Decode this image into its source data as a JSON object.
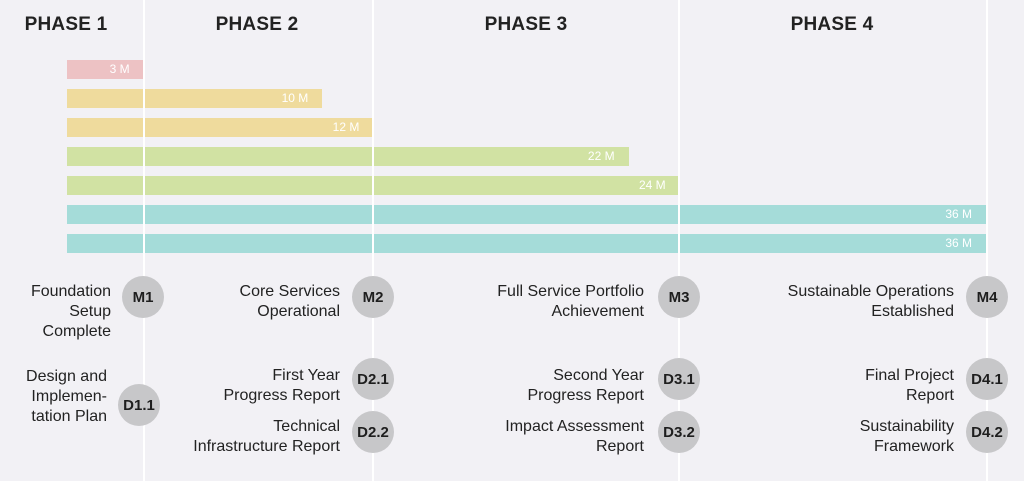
{
  "phases": [
    "PHASE 1",
    "PHASE 2",
    "PHASE 3",
    "PHASE 4"
  ],
  "colors": {
    "background": "#f2f1f5",
    "divider": "#ffffff",
    "bar_pink": "#edc2c4",
    "bar_yellow": "#efdb9d",
    "bar_green": "#d1e2a3",
    "bar_teal": "#a5dcd9",
    "badge": "#c7c7c9"
  },
  "timeline": {
    "total_months": 36,
    "bars": [
      {
        "label": "3 M",
        "months": 3,
        "color": "#edc2c4"
      },
      {
        "label": "10 M",
        "months": 10,
        "color": "#efdb9d"
      },
      {
        "label": "12 M",
        "months": 12,
        "color": "#efdb9d"
      },
      {
        "label": "22 M",
        "months": 22,
        "color": "#d1e2a3"
      },
      {
        "label": "24 M",
        "months": 24,
        "color": "#d1e2a3"
      },
      {
        "label": "36 M",
        "months": 36,
        "color": "#a5dcd9"
      },
      {
        "label": "36 M",
        "months": 36,
        "color": "#a5dcd9"
      }
    ]
  },
  "milestones": [
    {
      "code": "M1",
      "lines": [
        "Foundation",
        "Setup",
        "Complete"
      ]
    },
    {
      "code": "M2",
      "lines": [
        "Core Services",
        "Operational"
      ]
    },
    {
      "code": "M3",
      "lines": [
        "Full Service Portfolio",
        "Achievement"
      ]
    },
    {
      "code": "M4",
      "lines": [
        "Sustainable Operations",
        "Established"
      ]
    }
  ],
  "deliverables": [
    {
      "code": "D1.1",
      "lines": [
        "Design and",
        "Implemen-",
        "tation Plan"
      ]
    },
    {
      "code": "D2.1",
      "lines": [
        "First Year",
        "Progress Report"
      ]
    },
    {
      "code": "D2.2",
      "lines": [
        "Technical",
        "Infrastructure Report"
      ]
    },
    {
      "code": "D3.1",
      "lines": [
        "Second Year",
        "Progress Report"
      ]
    },
    {
      "code": "D3.2",
      "lines": [
        "Impact Assessment",
        "Report"
      ]
    },
    {
      "code": "D4.1",
      "lines": [
        "Final Project",
        "Report"
      ]
    },
    {
      "code": "D4.2",
      "lines": [
        "Sustainability",
        "Framework"
      ]
    }
  ]
}
